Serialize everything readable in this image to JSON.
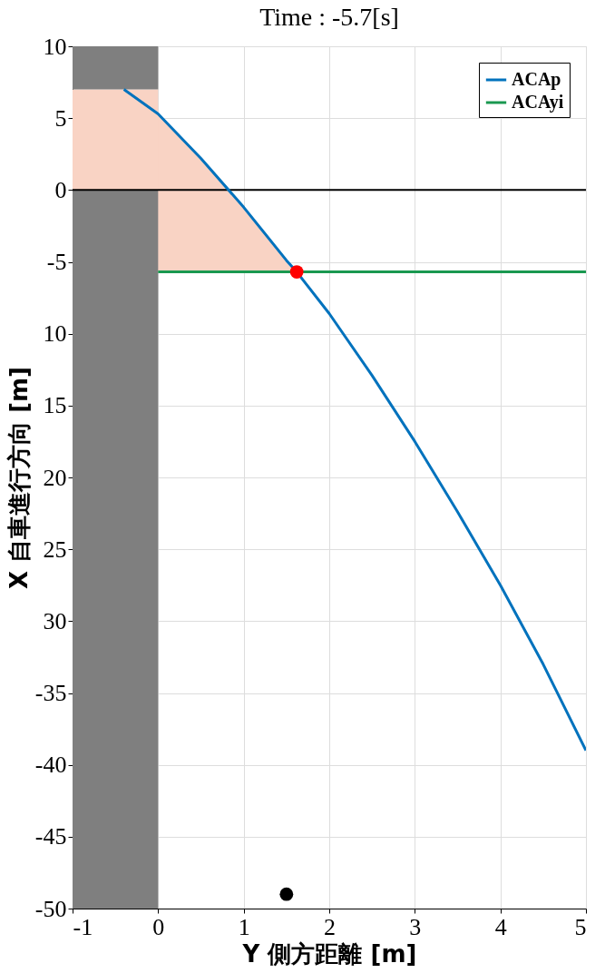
{
  "chart_data": {
    "type": "line",
    "title": "Time : -5.7[s]",
    "xlabel": "Y 側方距離 [m]",
    "ylabel": "X 自車進行方向 [m]",
    "xlim": [
      -1,
      5
    ],
    "xticks": [
      -1,
      0,
      1,
      2,
      3,
      4,
      5
    ],
    "ylim": [
      -50,
      10
    ],
    "yticks": [
      10,
      5,
      0,
      -5,
      {
        "value": -10,
        "label": "10"
      },
      {
        "value": -15,
        "label": "15"
      },
      {
        "value": -20,
        "label": "20"
      },
      {
        "value": -25,
        "label": "25"
      },
      {
        "value": -30,
        "label": "30"
      },
      -35,
      -40,
      -45,
      -50
    ],
    "grid": true,
    "legend": "top right",
    "line_style": "solid",
    "ref_lines": [
      {
        "axis": "y",
        "value": 0,
        "color": "#000000"
      }
    ],
    "series": [
      {
        "name": "ACAp",
        "color": "#0072bd",
        "x": [
          -0.4,
          0,
          0.5,
          1,
          1.5,
          1.62,
          2,
          2.5,
          3,
          3.5,
          4,
          4.5,
          5
        ],
        "values": [
          7,
          5.3,
          2.2,
          -1.2,
          -4.9,
          -5.7,
          -8.6,
          -12.9,
          -17.5,
          -22.4,
          -27.5,
          -33,
          -39
        ],
        "upper": [
          7,
          5.3,
          2.2,
          -1.2,
          -4.9,
          -5.7,
          null,
          null,
          null,
          null,
          null,
          null,
          null
        ],
        "lower": [
          0,
          -5.7,
          -5.7,
          -5.7,
          -5.7,
          -5.7,
          null,
          null,
          null,
          null,
          null,
          null,
          null
        ]
      },
      {
        "type": "bar",
        "color": "#f9d3c4",
        "x": [
          -0.5
        ],
        "base": [
          0
        ],
        "values": [
          7
        ]
      },
      {
        "type": "bar",
        "color": "#7f7f7f",
        "x": [
          -0.5
        ],
        "base": [
          -50
        ],
        "values": [
          50
        ]
      },
      {
        "type": "bar",
        "color": "#7f7f7f",
        "x": [
          -0.5
        ],
        "base": [
          7
        ],
        "values": [
          3
        ]
      },
      {
        "name": "ACAyi",
        "color": "#1a9850",
        "x": [
          0,
          5
        ],
        "values": [
          -5.7,
          -5.7
        ]
      },
      {
        "type": "scatter",
        "color": "#ff0000",
        "marker": "circle",
        "x": [
          1.62
        ],
        "values": [
          -5.7
        ]
      },
      {
        "type": "scatter",
        "color": "#000000",
        "marker": "circle",
        "x": [
          1.5
        ],
        "values": [
          -49
        ]
      }
    ]
  }
}
